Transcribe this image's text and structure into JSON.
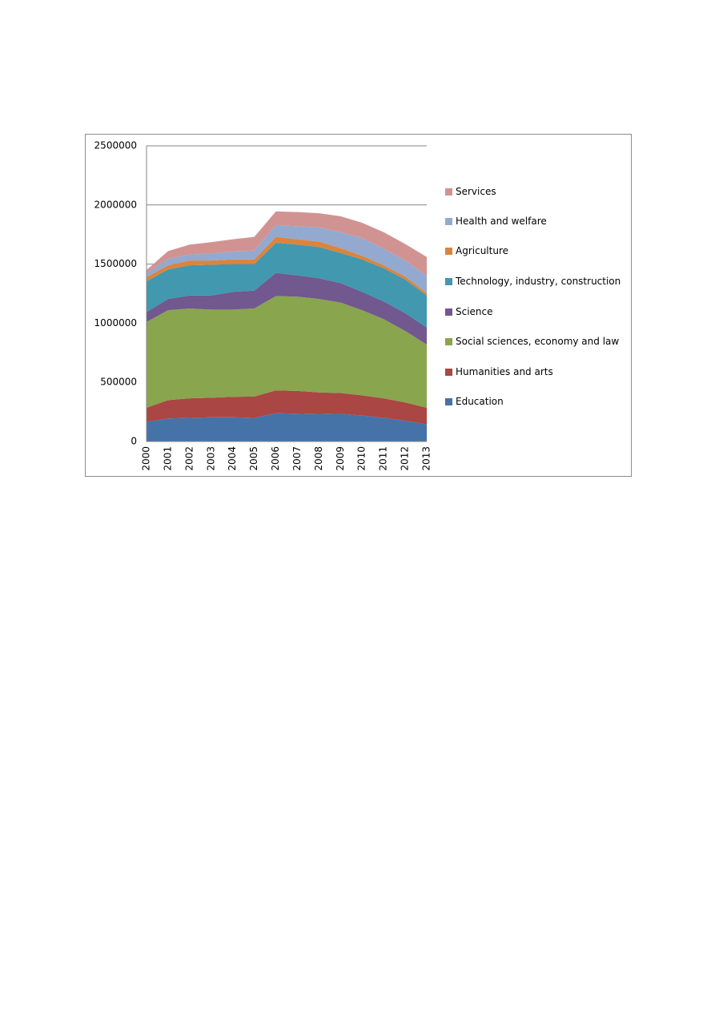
{
  "chart_data": {
    "type": "stacked-area",
    "categories": [
      "2000",
      "2001",
      "2002",
      "2003",
      "2004",
      "2005",
      "2006",
      "2007",
      "2008",
      "2009",
      "2010",
      "2011",
      "2012",
      "2013"
    ],
    "ylim": [
      0,
      2500000
    ],
    "yticks": [
      0,
      500000,
      1000000,
      1500000,
      2000000,
      2500000
    ],
    "grid": true,
    "legend": "right",
    "series": [
      {
        "name": "Education",
        "color": "#4572a7",
        "values": [
          165000,
          195000,
          200000,
          205000,
          205000,
          200000,
          240000,
          235000,
          230000,
          235000,
          220000,
          200000,
          175000,
          145000
        ]
      },
      {
        "name": "Humanities and arts",
        "color": "#aa4643",
        "values": [
          120000,
          155000,
          165000,
          165000,
          173000,
          180000,
          192000,
          193000,
          185000,
          175000,
          170000,
          165000,
          155000,
          140000
        ]
      },
      {
        "name": "Social sciences, economy and law",
        "color": "#89a54e",
        "values": [
          725000,
          760000,
          760000,
          745000,
          737000,
          745000,
          798000,
          797000,
          790000,
          765000,
          720000,
          670000,
          605000,
          535000
        ]
      },
      {
        "name": "Science",
        "color": "#71588f",
        "values": [
          85000,
          95000,
          110000,
          120000,
          150000,
          150000,
          195000,
          180000,
          175000,
          165000,
          155000,
          150000,
          150000,
          145000
        ]
      },
      {
        "name": "Technology, industry, construction",
        "color": "#4198af",
        "values": [
          260000,
          250000,
          255000,
          260000,
          235000,
          225000,
          255000,
          260000,
          265000,
          255000,
          275000,
          280000,
          285000,
          270000
        ]
      },
      {
        "name": "Agriculture",
        "color": "#db843d",
        "values": [
          35000,
          35000,
          40000,
          35000,
          40000,
          40000,
          50000,
          45000,
          45000,
          40000,
          30000,
          25000,
          25000,
          20000
        ]
      },
      {
        "name": "Health and welfare",
        "color": "#93a9cf",
        "values": [
          30000,
          55000,
          50000,
          60000,
          65000,
          75000,
          100000,
          110000,
          120000,
          135000,
          150000,
          140000,
          135000,
          145000
        ]
      },
      {
        "name": "Services",
        "color": "#d19392",
        "values": [
          30000,
          65000,
          85000,
          95000,
          105000,
          115000,
          115000,
          120000,
          120000,
          135000,
          130000,
          140000,
          140000,
          160000
        ]
      }
    ]
  }
}
